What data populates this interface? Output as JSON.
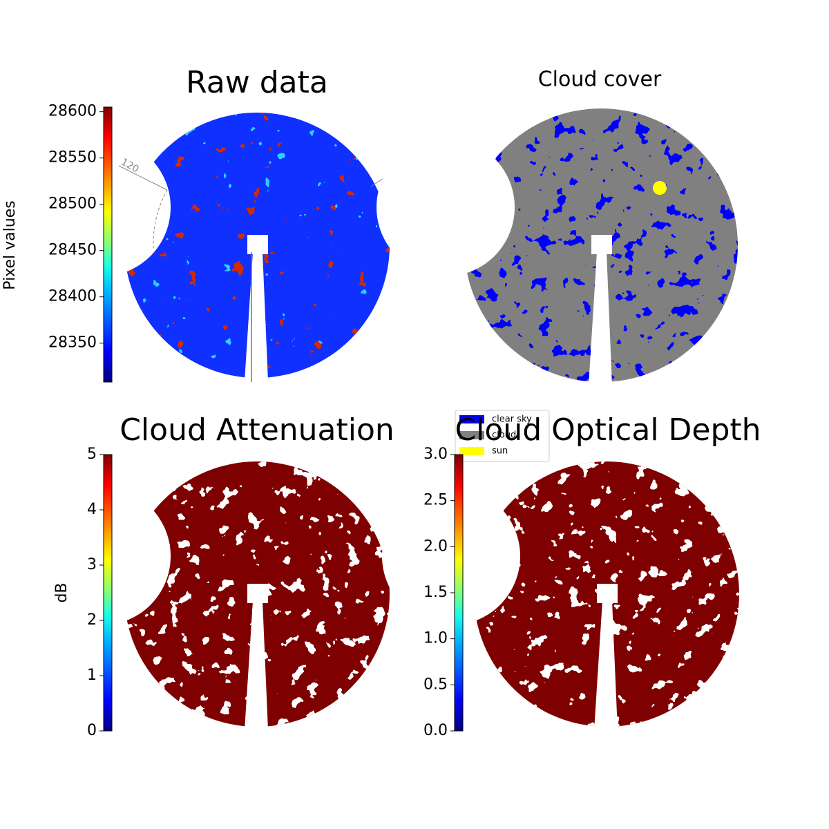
{
  "chart_data": [
    {
      "type": "image",
      "title": "Raw data",
      "ylabel": "Pixel values",
      "ylim": [
        28308,
        28605
      ],
      "yticks": [
        28350,
        28400,
        28450,
        28500,
        28550,
        28600
      ],
      "texture": "raw",
      "annotations": [
        "120"
      ]
    },
    {
      "type": "image",
      "title": "Cloud cover",
      "texture": "cover",
      "series": [
        {
          "name": "clear sky",
          "color": "#0000ff"
        },
        {
          "name": "cloud",
          "color": "#808080"
        },
        {
          "name": "sun",
          "color": "#ffff00"
        }
      ]
    },
    {
      "type": "image",
      "title": "Cloud Attenuation",
      "ylabel": "dB",
      "ylim": [
        0,
        5
      ],
      "yticks": [
        0,
        1,
        2,
        3,
        4,
        5
      ],
      "texture": "mask"
    },
    {
      "type": "image",
      "title": "Cloud Optical Depth",
      "ylim": [
        0,
        3
      ],
      "yticks": [
        {
          "value": 0,
          "label": "0.0"
        },
        0.5,
        {
          "value": 1,
          "label": "1.0"
        },
        1.5,
        {
          "value": 2,
          "label": "2.0"
        },
        2.5,
        {
          "value": 3,
          "label": "3.0"
        }
      ],
      "texture": "mask"
    }
  ]
}
